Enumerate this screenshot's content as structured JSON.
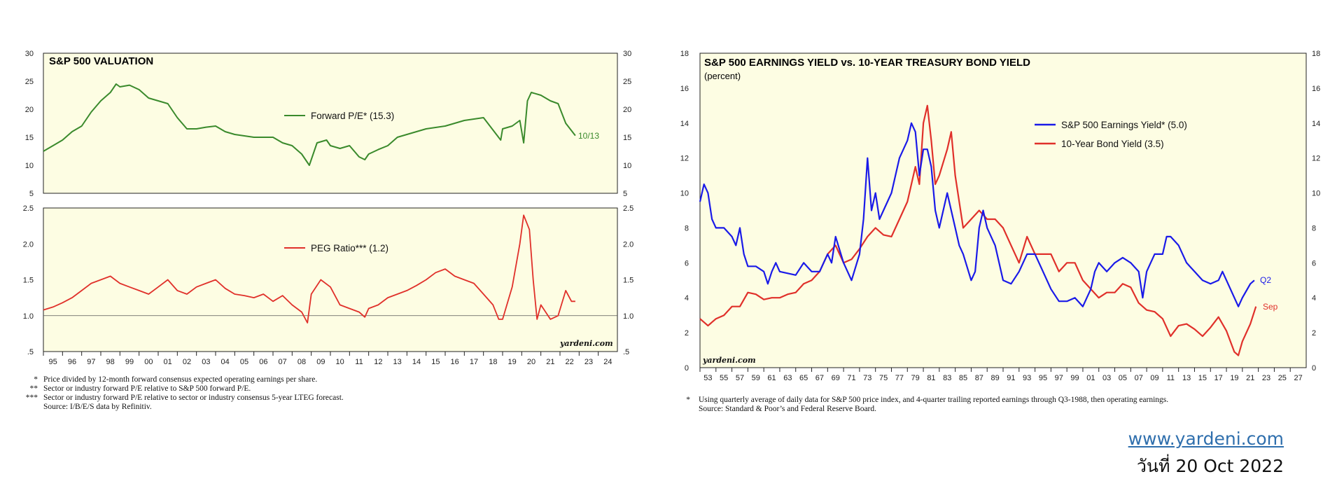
{
  "colors": {
    "panel_bg": "#fdfde3",
    "green": "#3a8a2c",
    "red": "#e0302a",
    "blue": "#1a1ae8"
  },
  "chart_data": [
    {
      "type": "line",
      "title": "S&P 500  VALUATION",
      "ylim": [
        5,
        30
      ],
      "y_ticks": [
        "5",
        "10",
        "15",
        "20",
        "25",
        "30"
      ],
      "series": [
        {
          "name": "Forward P/E* (15.3)",
          "end_label": "10/13",
          "x": [
            1995.0,
            1995.5,
            1996.0,
            1996.5,
            1997.0,
            1997.5,
            1998.0,
            1998.5,
            1998.8,
            1999.0,
            1999.5,
            2000.0,
            2000.5,
            2001.0,
            2001.5,
            2002.0,
            2002.5,
            2003.0,
            2003.5,
            2004.0,
            2004.5,
            2005.0,
            2006.0,
            2007.0,
            2007.5,
            2008.0,
            2008.5,
            2008.9,
            2009.3,
            2009.8,
            2010.0,
            2010.5,
            2011.0,
            2011.5,
            2011.8,
            2012.0,
            2012.5,
            2013.0,
            2013.5,
            2014.0,
            2015.0,
            2016.0,
            2016.5,
            2017.0,
            2018.0,
            2018.9,
            2019.0,
            2019.5,
            2019.9,
            2020.1,
            2020.3,
            2020.5,
            2021.0,
            2021.5,
            2021.9,
            2022.3,
            2022.8
          ],
          "y": [
            12.5,
            13.5,
            14.5,
            16.0,
            17.0,
            19.5,
            21.5,
            23.0,
            24.5,
            24.0,
            24.3,
            23.5,
            22.0,
            21.5,
            21.0,
            18.5,
            16.5,
            16.5,
            16.8,
            17.0,
            16.0,
            15.5,
            15.0,
            15.0,
            14.0,
            13.5,
            12.0,
            10.0,
            14.0,
            14.5,
            13.5,
            13.0,
            13.5,
            11.5,
            11.0,
            12.0,
            12.8,
            13.5,
            15.0,
            15.5,
            16.5,
            17.0,
            17.5,
            18.0,
            18.5,
            14.5,
            16.5,
            17.0,
            18.0,
            14.0,
            21.5,
            23.0,
            22.5,
            21.5,
            21.0,
            17.5,
            15.3
          ]
        }
      ]
    },
    {
      "type": "line",
      "ylim": [
        0.5,
        2.5
      ],
      "y_ticks": [
        ".5",
        "1.0",
        "1.5",
        "2.0",
        "2.5"
      ],
      "reference_line": 1.0,
      "x_ticks": [
        "95",
        "96",
        "97",
        "98",
        "99",
        "00",
        "01",
        "02",
        "03",
        "04",
        "05",
        "06",
        "07",
        "08",
        "09",
        "10",
        "11",
        "12",
        "13",
        "14",
        "15",
        "16",
        "17",
        "18",
        "19",
        "20",
        "21",
        "22",
        "23",
        "24"
      ],
      "series": [
        {
          "name": "PEG Ratio*** (1.2)",
          "x": [
            1995.0,
            1995.5,
            1996.0,
            1996.5,
            1997.0,
            1997.5,
            1998.0,
            1998.5,
            1999.0,
            1999.5,
            2000.0,
            2000.5,
            2001.0,
            2001.5,
            2002.0,
            2002.5,
            2003.0,
            2003.5,
            2004.0,
            2004.5,
            2005.0,
            2005.5,
            2006.0,
            2006.5,
            2007.0,
            2007.5,
            2008.0,
            2008.5,
            2008.8,
            2009.0,
            2009.5,
            2010.0,
            2010.5,
            2011.0,
            2011.5,
            2011.8,
            2012.0,
            2012.5,
            2013.0,
            2013.5,
            2014.0,
            2014.5,
            2015.0,
            2015.5,
            2016.0,
            2016.5,
            2017.0,
            2017.5,
            2018.0,
            2018.5,
            2018.8,
            2019.0,
            2019.5,
            2019.9,
            2020.1,
            2020.4,
            2020.6,
            2020.8,
            2021.0,
            2021.5,
            2021.9,
            2022.3,
            2022.6,
            2022.8
          ],
          "y": [
            1.08,
            1.12,
            1.18,
            1.25,
            1.35,
            1.45,
            1.5,
            1.55,
            1.45,
            1.4,
            1.35,
            1.3,
            1.4,
            1.5,
            1.35,
            1.3,
            1.4,
            1.45,
            1.5,
            1.38,
            1.3,
            1.28,
            1.25,
            1.3,
            1.2,
            1.28,
            1.15,
            1.05,
            0.9,
            1.3,
            1.5,
            1.4,
            1.15,
            1.1,
            1.05,
            0.98,
            1.1,
            1.15,
            1.25,
            1.3,
            1.35,
            1.42,
            1.5,
            1.6,
            1.65,
            1.55,
            1.5,
            1.45,
            1.3,
            1.15,
            0.95,
            0.95,
            1.4,
            2.0,
            2.4,
            2.2,
            1.5,
            0.95,
            1.15,
            0.95,
            1.0,
            1.35,
            1.2,
            1.2
          ]
        }
      ]
    },
    {
      "type": "line",
      "title": "S&P 500 EARNINGS YIELD vs. 10-YEAR TREASURY BOND YIELD",
      "subtitle": "(percent)",
      "ylim": [
        0,
        18
      ],
      "y_ticks": [
        "0",
        "2",
        "4",
        "6",
        "8",
        "10",
        "12",
        "14",
        "16",
        "18"
      ],
      "x_ticks": [
        "53",
        "55",
        "57",
        "59",
        "61",
        "63",
        "65",
        "67",
        "69",
        "71",
        "73",
        "75",
        "77",
        "79",
        "81",
        "83",
        "85",
        "87",
        "89",
        "91",
        "93",
        "95",
        "97",
        "99",
        "01",
        "03",
        "05",
        "07",
        "09",
        "11",
        "13",
        "15",
        "17",
        "19",
        "21",
        "23",
        "25",
        "27"
      ],
      "series": [
        {
          "name": "S&P 500 Earnings Yield* (5.0)",
          "end_label": "Q2",
          "x": [
            1953.0,
            1953.5,
            1954.0,
            1954.5,
            1955.0,
            1956.0,
            1957.0,
            1957.5,
            1958.0,
            1958.5,
            1959.0,
            1960.0,
            1961.0,
            1961.5,
            1962.0,
            1962.5,
            1963.0,
            1965.0,
            1966.0,
            1967.0,
            1968.0,
            1969.0,
            1969.5,
            1970.0,
            1971.0,
            1971.5,
            1972.0,
            1973.0,
            1973.5,
            1974.0,
            1974.5,
            1975.0,
            1975.5,
            1976.0,
            1977.0,
            1978.0,
            1979.0,
            1979.5,
            1980.0,
            1980.5,
            1981.0,
            1981.5,
            1982.0,
            1982.5,
            1983.0,
            1984.0,
            1984.5,
            1985.0,
            1985.5,
            1986.0,
            1987.0,
            1987.5,
            1988.0,
            1988.5,
            1989.0,
            1990.0,
            1990.5,
            1991.0,
            1992.0,
            1993.0,
            1994.0,
            1995.0,
            1996.0,
            1997.0,
            1998.0,
            1999.0,
            2000.0,
            2001.0,
            2002.0,
            2002.5,
            2003.0,
            2004.0,
            2005.0,
            2006.0,
            2007.0,
            2008.0,
            2008.5,
            2009.0,
            2009.5,
            2010.0,
            2011.0,
            2011.5,
            2012.0,
            2013.0,
            2014.0,
            2015.0,
            2016.0,
            2017.0,
            2018.0,
            2018.5,
            2019.0,
            2020.0,
            2020.5,
            2021.0,
            2022.0,
            2022.5
          ],
          "y": [
            9.5,
            10.5,
            10.0,
            8.5,
            8.0,
            8.0,
            7.5,
            7.0,
            8.0,
            6.5,
            5.8,
            5.8,
            5.5,
            4.8,
            5.5,
            6.0,
            5.5,
            5.3,
            6.0,
            5.5,
            5.5,
            6.5,
            6.0,
            7.5,
            6.0,
            5.5,
            5.0,
            6.5,
            8.5,
            12.0,
            9.0,
            10.0,
            8.5,
            9.0,
            10.0,
            12.0,
            13.0,
            14.0,
            13.5,
            11.0,
            12.5,
            12.5,
            11.5,
            9.0,
            8.0,
            10.0,
            9.0,
            8.0,
            7.0,
            6.5,
            5.0,
            5.5,
            8.0,
            9.0,
            8.0,
            7.0,
            6.0,
            5.0,
            4.8,
            5.5,
            6.5,
            6.5,
            5.5,
            4.5,
            3.8,
            3.8,
            4.0,
            3.5,
            4.5,
            5.5,
            6.0,
            5.5,
            6.0,
            6.3,
            6.0,
            5.5,
            4.0,
            5.5,
            6.0,
            6.5,
            6.5,
            7.5,
            7.5,
            7.0,
            6.0,
            5.5,
            5.0,
            4.8,
            5.0,
            5.5,
            5.0,
            4.0,
            3.5,
            4.0,
            4.8,
            5.0
          ]
        },
        {
          "name": "10-Year Bond Yield (3.5)",
          "end_label": "Sep",
          "x": [
            1953.0,
            1954.0,
            1955.0,
            1956.0,
            1957.0,
            1958.0,
            1959.0,
            1960.0,
            1961.0,
            1962.0,
            1963.0,
            1964.0,
            1965.0,
            1966.0,
            1967.0,
            1968.0,
            1969.0,
            1970.0,
            1971.0,
            1972.0,
            1973.0,
            1974.0,
            1975.0,
            1976.0,
            1977.0,
            1978.0,
            1979.0,
            1980.0,
            1980.5,
            1981.0,
            1981.5,
            1982.0,
            1982.5,
            1983.0,
            1984.0,
            1984.5,
            1985.0,
            1986.0,
            1987.0,
            1988.0,
            1989.0,
            1990.0,
            1991.0,
            1992.0,
            1993.0,
            1994.0,
            1995.0,
            1996.0,
            1997.0,
            1998.0,
            1999.0,
            2000.0,
            2001.0,
            2002.0,
            2003.0,
            2004.0,
            2005.0,
            2006.0,
            2007.0,
            2008.0,
            2009.0,
            2010.0,
            2011.0,
            2012.0,
            2013.0,
            2014.0,
            2015.0,
            2016.0,
            2017.0,
            2018.0,
            2019.0,
            2020.0,
            2020.5,
            2021.0,
            2022.0,
            2022.7
          ],
          "y": [
            2.8,
            2.4,
            2.8,
            3.0,
            3.5,
            3.5,
            4.3,
            4.2,
            3.9,
            4.0,
            4.0,
            4.2,
            4.3,
            4.8,
            5.0,
            5.5,
            6.5,
            7.0,
            6.0,
            6.2,
            6.8,
            7.5,
            8.0,
            7.6,
            7.5,
            8.5,
            9.5,
            11.5,
            10.5,
            14.0,
            15.0,
            13.0,
            10.5,
            11.0,
            12.5,
            13.5,
            11.0,
            8.0,
            8.5,
            9.0,
            8.5,
            8.5,
            8.0,
            7.0,
            6.0,
            7.5,
            6.5,
            6.5,
            6.5,
            5.5,
            6.0,
            6.0,
            5.0,
            4.5,
            4.0,
            4.3,
            4.3,
            4.8,
            4.6,
            3.7,
            3.3,
            3.2,
            2.8,
            1.8,
            2.4,
            2.5,
            2.2,
            1.8,
            2.3,
            2.9,
            2.1,
            0.9,
            0.7,
            1.5,
            2.5,
            3.5
          ]
        }
      ]
    }
  ],
  "chart1_watermark": "yardeni.com",
  "chart2_watermark": "yardeni.com",
  "chart1_footnotes": [
    {
      "mark": "*",
      "text": "Price divided by 12-month forward consensus expected operating earnings per share."
    },
    {
      "mark": "**",
      "text": "Sector or industry forward P/E relative to S&P 500 forward P/E."
    },
    {
      "mark": "***",
      "text": "Sector or industry forward P/E relative to sector or industry consensus 5-year LTEG forecast."
    },
    {
      "mark": "",
      "text": "Source: I/B/E/S data by Refinitiv."
    }
  ],
  "chart2_footnotes": [
    {
      "mark": "*",
      "text": "Using quarterly average of daily data for S&P 500 price index, and 4-quarter trailing reported earnings through Q3-1988, then operating earnings."
    },
    {
      "mark": "",
      "text": "Source: Standard & Poor’s and Federal Reserve Board."
    }
  ],
  "site_link": "www.yardeni.com",
  "date_text": "วันที่ 20 Oct 2022"
}
